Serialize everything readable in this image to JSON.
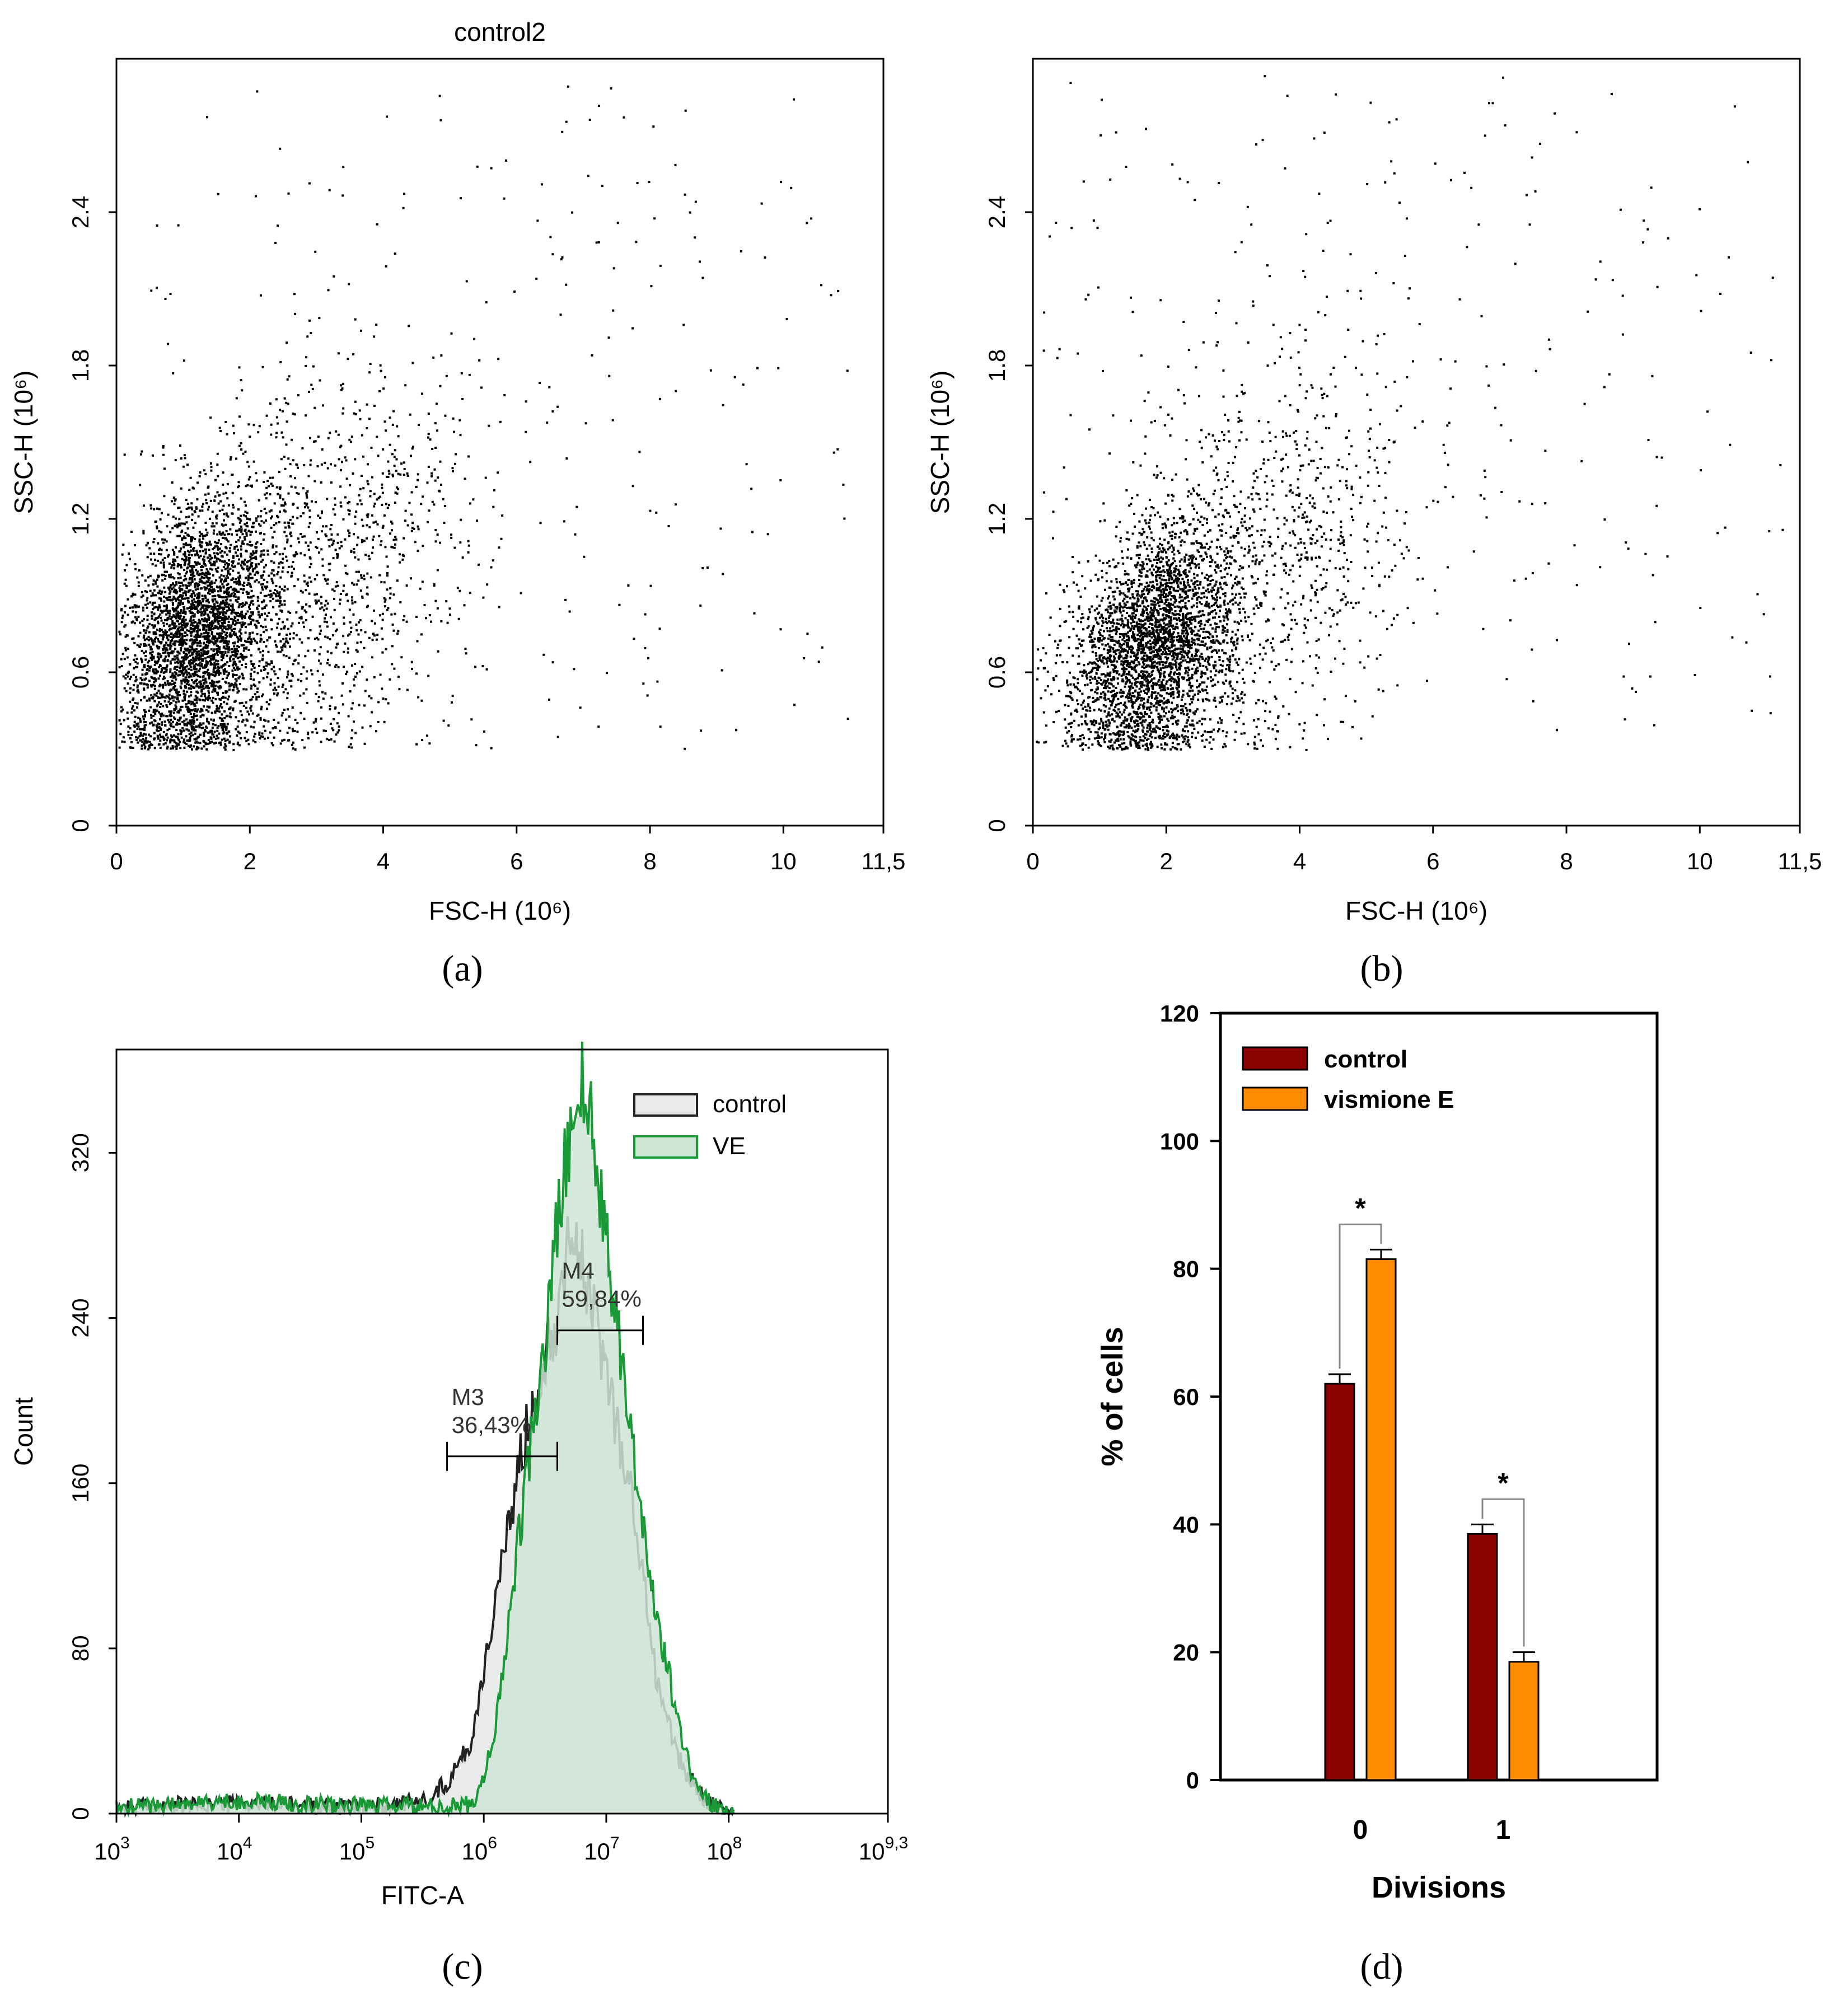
{
  "panels": {
    "a": {
      "caption": "(a)"
    },
    "b": {
      "caption": "(b)"
    },
    "c": {
      "caption": "(c)"
    },
    "d": {
      "caption": "(d)"
    }
  },
  "chart_data": [
    {
      "id": "a",
      "type": "scatter",
      "title": "control2",
      "xlabel": "FSC-H",
      "xlabel_unit": "(10⁶)",
      "ylabel": "SSC-H",
      "ylabel_unit": "(10⁶)",
      "xlim": [
        0,
        11.5
      ],
      "ylim": [
        0,
        3.0
      ],
      "xticks": [
        0,
        2,
        4,
        6,
        8,
        10,
        11.5
      ],
      "xtick_labels": [
        "0",
        "2",
        "4",
        "6",
        "8",
        "10",
        "11,5"
      ],
      "yticks": [
        0,
        0.6,
        1.2,
        1.8,
        2.4
      ],
      "ytick_labels": [
        "0",
        "0.6",
        "1.2",
        "1.8",
        "2.4"
      ],
      "population": {
        "core": {
          "fsc_center": 1.2,
          "ssc_center": 0.75,
          "fsc_sd": 0.55,
          "ssc_sd": 0.25,
          "points": 3200
        },
        "mid": {
          "fsc_center": 2.8,
          "ssc_center": 0.95,
          "fsc_sd": 1.2,
          "ssc_sd": 0.4,
          "points": 1400
        },
        "sparse": {
          "fsc_range": [
            0.5,
            11.0
          ],
          "ssc_range": [
            0.3,
            2.9
          ],
          "points": 260
        },
        "floor": 0.3
      }
    },
    {
      "id": "b",
      "type": "scatter",
      "title": "",
      "xlabel": "FSC-H",
      "xlabel_unit": "(10⁶)",
      "ylabel": "SSC-H",
      "ylabel_unit": "(10⁶)",
      "xlim": [
        0,
        11.5
      ],
      "ylim": [
        0,
        3.0
      ],
      "xticks": [
        0,
        2,
        4,
        6,
        8,
        10,
        11.5
      ],
      "xtick_labels": [
        "0",
        "2",
        "4",
        "6",
        "8",
        "10",
        "11,5"
      ],
      "yticks": [
        0,
        0.6,
        1.2,
        1.8,
        2.4
      ],
      "ytick_labels": [
        "0",
        "0.6",
        "1.2",
        "1.8",
        "2.4"
      ],
      "population": {
        "core": {
          "fsc_center": 1.8,
          "ssc_center": 0.7,
          "fsc_sd": 0.6,
          "ssc_sd": 0.22,
          "points": 3000
        },
        "mid": {
          "fsc_center": 3.2,
          "ssc_center": 1.0,
          "fsc_sd": 1.3,
          "ssc_sd": 0.4,
          "points": 1100
        },
        "sparse": {
          "fsc_range": [
            0.1,
            11.3
          ],
          "ssc_range": [
            0.3,
            2.95
          ],
          "points": 240
        },
        "floor": 0.3
      }
    },
    {
      "id": "c",
      "type": "area",
      "xlabel": "FITC-A",
      "ylabel": "Count",
      "x_scale": "log10",
      "xlim_log10": [
        3,
        9.3
      ],
      "ylim": [
        0,
        370
      ],
      "xticks_log10": [
        3,
        4,
        5,
        6,
        7,
        8,
        9.3
      ],
      "xtick_base": "10",
      "xtick_exponents": [
        "3",
        "4",
        "5",
        "6",
        "7",
        "8",
        "9,3"
      ],
      "yticks": [
        0,
        80,
        160,
        240,
        320
      ],
      "ytick_labels": [
        "0",
        "80",
        "160",
        "240",
        "320"
      ],
      "legend": [
        "control",
        "VE"
      ],
      "series": [
        {
          "name": "control",
          "color": "#222222",
          "fill": "#e9ebea",
          "x_log10": [
            3.0,
            4.0,
            5.0,
            5.5,
            5.7,
            5.9,
            6.0,
            6.1,
            6.2,
            6.3,
            6.4,
            6.5,
            6.6,
            6.7,
            6.8,
            6.9,
            7.0,
            7.1,
            7.2,
            7.3,
            7.4,
            7.5,
            7.6,
            7.7,
            7.8,
            7.9,
            8.0
          ],
          "values": [
            3,
            5,
            3,
            6,
            15,
            35,
            70,
            105,
            135,
            175,
            195,
            225,
            240,
            290,
            265,
            240,
            215,
            185,
            155,
            115,
            70,
            45,
            25,
            15,
            8,
            3,
            0
          ]
        },
        {
          "name": "VE",
          "color": "#1a9a36",
          "fill": "#cfe5d6",
          "x_log10": [
            3.0,
            4.0,
            5.0,
            5.7,
            5.9,
            6.0,
            6.1,
            6.2,
            6.3,
            6.4,
            6.5,
            6.6,
            6.7,
            6.8,
            6.9,
            7.0,
            7.1,
            7.2,
            7.3,
            7.4,
            7.5,
            7.6,
            7.7,
            7.8,
            7.9,
            8.0
          ],
          "values": [
            3,
            6,
            4,
            3,
            5,
            15,
            45,
            90,
            140,
            185,
            225,
            285,
            330,
            355,
            325,
            280,
            235,
            185,
            140,
            100,
            70,
            40,
            20,
            8,
            3,
            0
          ]
        }
      ],
      "markers": [
        {
          "name": "M3",
          "percent": "36,43%",
          "x_log10": [
            5.7,
            6.6
          ],
          "y": 173
        },
        {
          "name": "M4",
          "percent": "59,84%",
          "x_log10": [
            6.6,
            7.3
          ],
          "y": 234
        }
      ]
    },
    {
      "id": "d",
      "type": "bar",
      "xlabel": "Divisions",
      "ylabel": "% of cells",
      "categories": [
        "0",
        "1"
      ],
      "ylim": [
        0,
        120
      ],
      "yticks": [
        0,
        20,
        40,
        60,
        80,
        100,
        120
      ],
      "legend": [
        "control",
        "vismione E"
      ],
      "series": [
        {
          "name": "control",
          "color": "#8b0000",
          "values": [
            62,
            38.5
          ],
          "errors": [
            1.5,
            1.5
          ]
        },
        {
          "name": "vismione E",
          "color": "#ff8c00",
          "values": [
            81.5,
            18.5
          ],
          "errors": [
            1.5,
            1.5
          ]
        }
      ],
      "significance": [
        {
          "category": "0",
          "label": "*"
        },
        {
          "category": "1",
          "label": "*"
        }
      ]
    }
  ]
}
